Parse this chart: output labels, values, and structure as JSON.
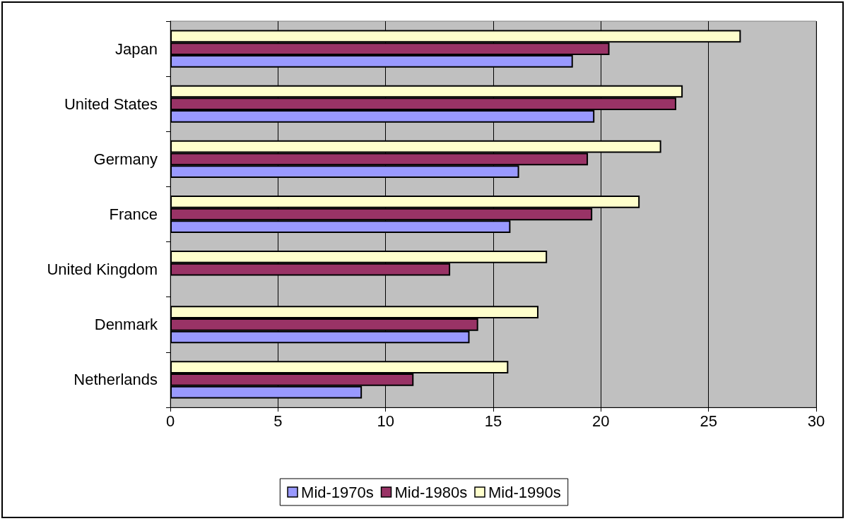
{
  "chart_data": {
    "type": "bar",
    "orientation": "horizontal",
    "categories": [
      "Japan",
      "United States",
      "Germany",
      "France",
      "United Kingdom",
      "Denmark",
      "Netherlands"
    ],
    "series": [
      {
        "name": "Mid-1970s",
        "color": "#9999ff",
        "values": [
          18.7,
          19.7,
          16.2,
          15.8,
          null,
          13.9,
          8.9
        ]
      },
      {
        "name": "Mid-1980s",
        "color": "#993366",
        "values": [
          20.4,
          23.5,
          19.4,
          19.6,
          13.0,
          14.3,
          11.3
        ]
      },
      {
        "name": "Mid-1990s",
        "color": "#ffffcc",
        "values": [
          26.5,
          23.8,
          22.8,
          21.8,
          17.5,
          17.1,
          15.7
        ]
      }
    ],
    "xlim": [
      0,
      30
    ],
    "xticks": [
      0,
      5,
      10,
      15,
      20,
      25,
      30
    ],
    "grid": "x",
    "legend": "bottom"
  }
}
